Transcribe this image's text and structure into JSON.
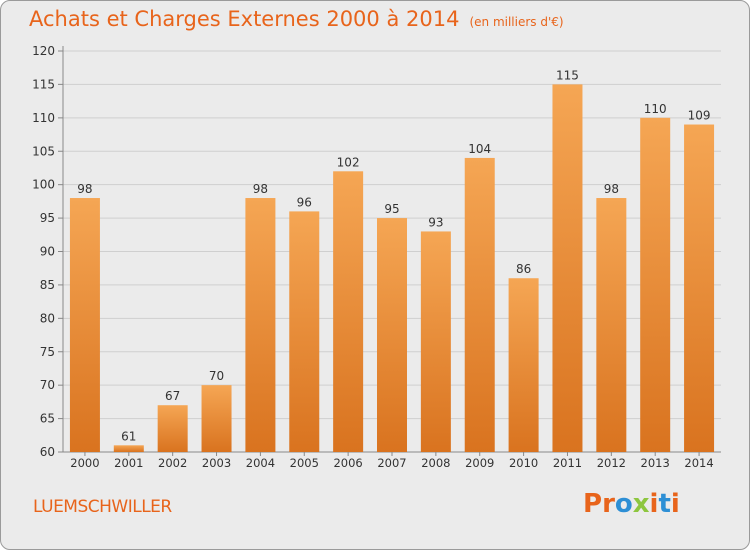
{
  "header": {
    "title": "Achats et Charges Externes 2000 à 2014",
    "subtitle": "(en milliers d'€)"
  },
  "footer": {
    "commune": "LUEMSCHWILLER",
    "logo": [
      "P",
      "r",
      "o",
      "x",
      "i",
      "t",
      "i"
    ]
  },
  "colors": {
    "title": "#e8641b",
    "bar_light": "#f5a654",
    "bar_dark": "#d9731f",
    "logo": [
      "#e8641b",
      "#e8641b",
      "#2d8fd5",
      "#8dc63f",
      "#e8641b",
      "#2d8fd5",
      "#e8641b"
    ]
  },
  "chart_data": {
    "type": "bar",
    "categories": [
      "2000",
      "2001",
      "2002",
      "2003",
      "2004",
      "2005",
      "2006",
      "2007",
      "2008",
      "2009",
      "2010",
      "2011",
      "2012",
      "2013",
      "2014"
    ],
    "values": [
      98,
      61,
      67,
      70,
      98,
      96,
      102,
      95,
      93,
      104,
      86,
      115,
      98,
      110,
      109
    ],
    "ylim": [
      60,
      120
    ],
    "yticks": [
      60,
      65,
      70,
      75,
      80,
      85,
      90,
      95,
      100,
      105,
      110,
      115,
      120
    ],
    "grid": true,
    "data_labels": true
  }
}
